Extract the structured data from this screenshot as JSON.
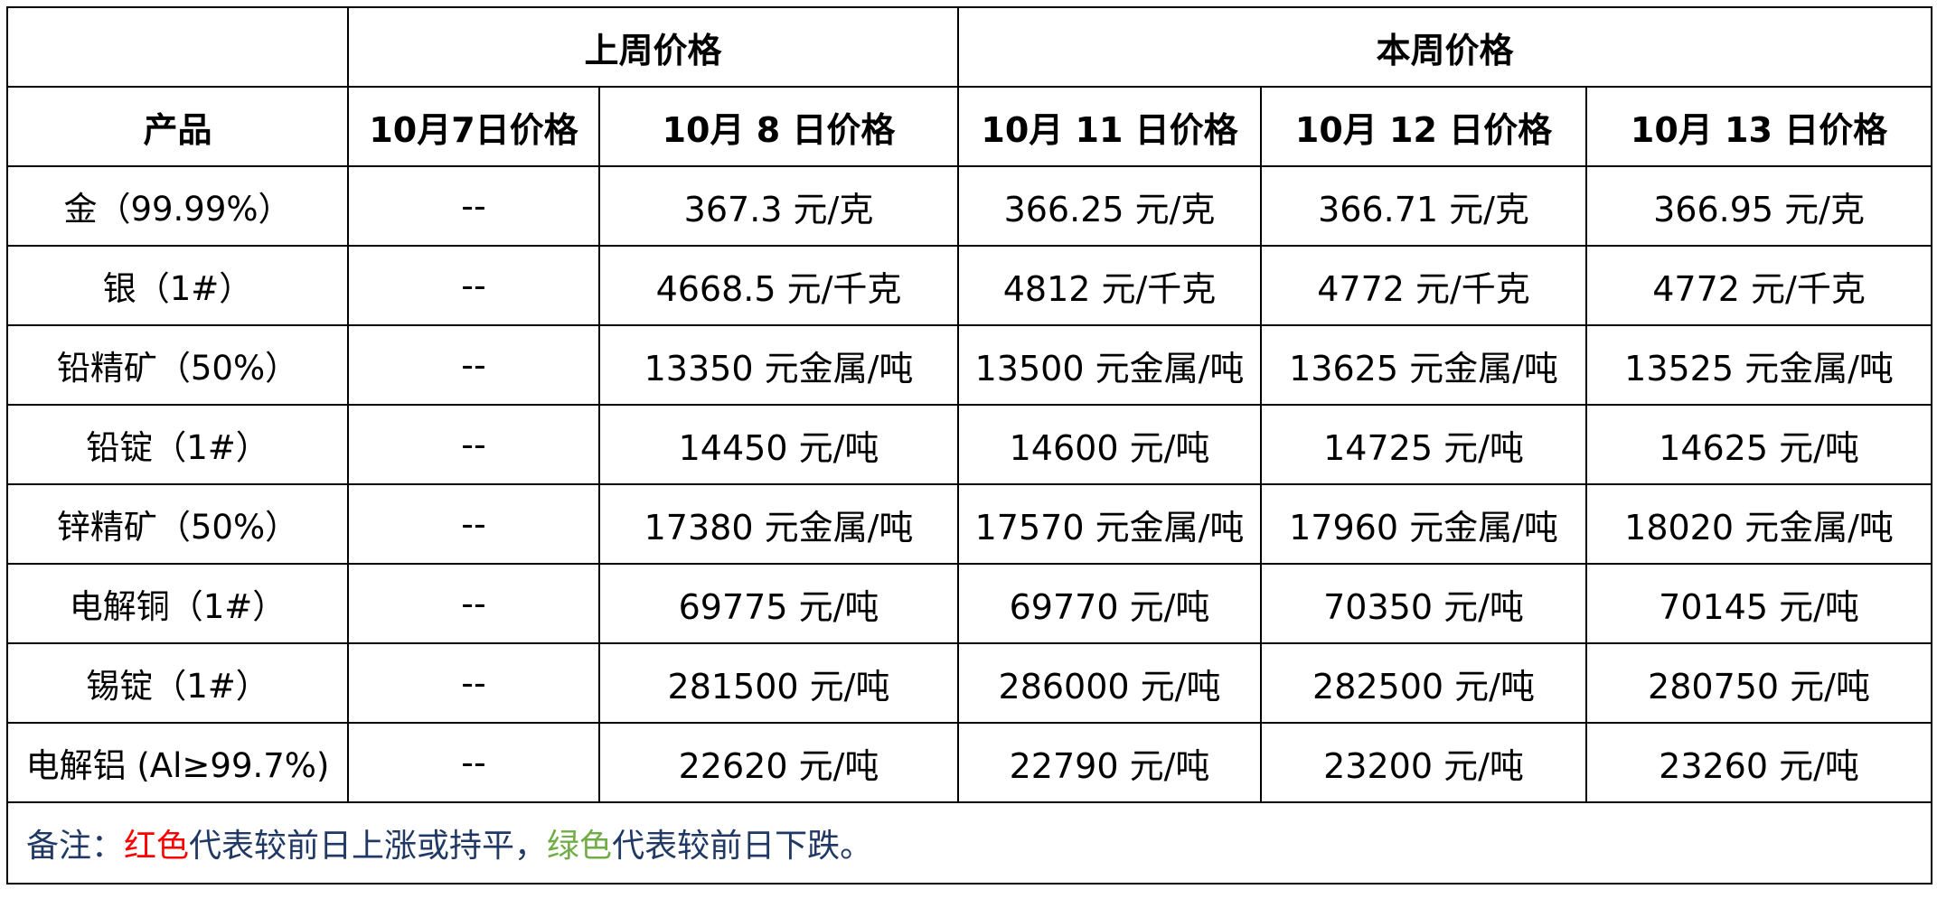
{
  "colors": {
    "up": "#ff0000",
    "down": "#70ad47",
    "note_text": "#1f3864",
    "border": "#000000"
  },
  "header": {
    "last_week": "上周价格",
    "this_week": "本周价格",
    "product_col": "产品",
    "dates": [
      "10月7日价格",
      "10月 8 日价格",
      "10月 11 日价格",
      "10月 12 日价格",
      "10月 13 日价格"
    ]
  },
  "rows": [
    {
      "product": "金（99.99%）",
      "prices": [
        {
          "text": "--",
          "trend": "up"
        },
        {
          "text": "367.3 元/克",
          "trend": "up"
        },
        {
          "text": "366.25 元/克",
          "trend": "down"
        },
        {
          "text": "366.71 元/克",
          "trend": "up"
        },
        {
          "text": "366.95 元/克",
          "trend": "up"
        }
      ]
    },
    {
      "product": "银（1#）",
      "prices": [
        {
          "text": "--",
          "trend": "up"
        },
        {
          "text": "4668.5 元/千克",
          "trend": "up"
        },
        {
          "text": "4812 元/千克",
          "trend": "up"
        },
        {
          "text": "4772 元/千克",
          "trend": "down"
        },
        {
          "text": "4772 元/千克",
          "trend": "up"
        }
      ]
    },
    {
      "product": "铅精矿（50%）",
      "prices": [
        {
          "text": "--",
          "trend": "up"
        },
        {
          "text": "13350 元金属/吨",
          "trend": "up"
        },
        {
          "text": "13500 元金属/吨",
          "trend": "up"
        },
        {
          "text": "13625 元金属/吨",
          "trend": "up"
        },
        {
          "text": "13525 元金属/吨",
          "trend": "down"
        }
      ]
    },
    {
      "product": "铅锭（1#）",
      "prices": [
        {
          "text": "--",
          "trend": "up"
        },
        {
          "text": "14450 元/吨",
          "trend": "up"
        },
        {
          "text": "14600 元/吨",
          "trend": "up"
        },
        {
          "text": "14725 元/吨",
          "trend": "up"
        },
        {
          "text": "14625 元/吨",
          "trend": "down"
        }
      ]
    },
    {
      "product": "锌精矿（50%）",
      "prices": [
        {
          "text": "--",
          "trend": "up"
        },
        {
          "text": "17380 元金属/吨",
          "trend": "up"
        },
        {
          "text": "17570 元金属/吨",
          "trend": "up"
        },
        {
          "text": "17960 元金属/吨",
          "trend": "up"
        },
        {
          "text": "18020 元金属/吨",
          "trend": "up"
        }
      ]
    },
    {
      "product": "电解铜（1#）",
      "prices": [
        {
          "text": "--",
          "trend": "up"
        },
        {
          "text": "69775 元/吨",
          "trend": "up"
        },
        {
          "text": "69770 元/吨",
          "trend": "down"
        },
        {
          "text": "70350 元/吨",
          "trend": "up"
        },
        {
          "text": "70145 元/吨",
          "trend": "down"
        }
      ]
    },
    {
      "product": "锡锭（1#）",
      "prices": [
        {
          "text": "--",
          "trend": "up"
        },
        {
          "text": "281500 元/吨",
          "trend": "up"
        },
        {
          "text": "286000 元/吨",
          "trend": "up"
        },
        {
          "text": "282500 元/吨",
          "trend": "down"
        },
        {
          "text": "280750 元/吨",
          "trend": "down"
        }
      ]
    },
    {
      "product": "电解铝 (Al≥99.7%)",
      "prices": [
        {
          "text": "--",
          "trend": "up"
        },
        {
          "text": "22620 元/吨",
          "trend": "up"
        },
        {
          "text": "22790 元/吨",
          "trend": "up"
        },
        {
          "text": "23200 元/吨",
          "trend": "up"
        },
        {
          "text": "23260 元/吨",
          "trend": "up"
        }
      ]
    }
  ],
  "note": {
    "prefix": "备注：",
    "red_word": "红色",
    "red_meaning": "代表较前日上涨或持平，",
    "green_word": "绿色",
    "green_meaning": "代表较前日下跌。"
  }
}
